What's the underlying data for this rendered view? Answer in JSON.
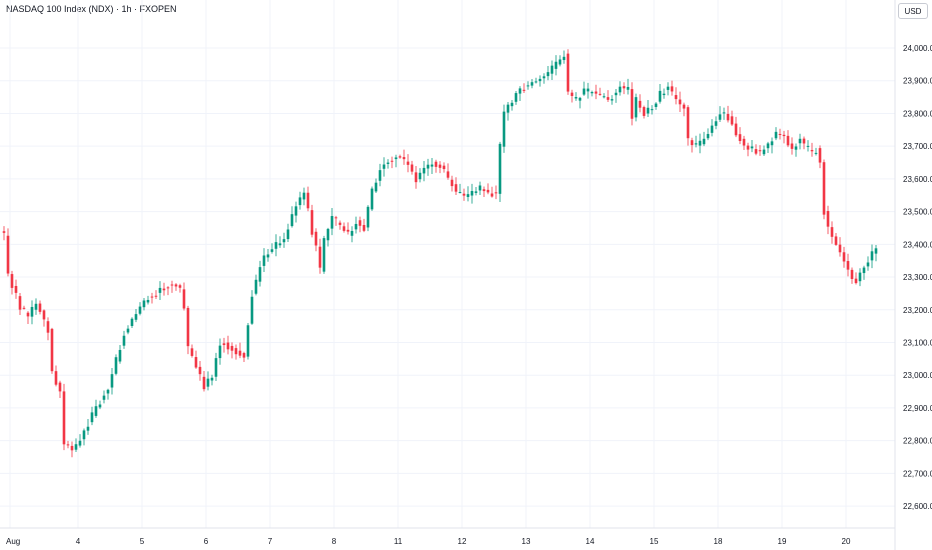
{
  "header": {
    "title": "NASDAQ 100 Index (NDX) · 1h · FXOPEN",
    "currency": "USD"
  },
  "colors": {
    "up": "#089981",
    "down": "#f23645",
    "grid": "#f0f3fa",
    "axis_text": "#131722",
    "background": "#ffffff"
  },
  "chart_data": {
    "type": "candlestick",
    "symbol": "NASDAQ 100 Index (NDX)",
    "interval": "1h",
    "source": "FXOPEN",
    "currency": "USD",
    "y_axis": {
      "side": "right",
      "ticks": [
        {
          "value": 24000,
          "label": "24,000.0"
        },
        {
          "value": 23900,
          "label": "23,900.0"
        },
        {
          "value": 23800,
          "label": "23,800.0"
        },
        {
          "value": 23700,
          "label": "23,700.0"
        },
        {
          "value": 23600,
          "label": "23,600.0"
        },
        {
          "value": 23500,
          "label": "23,500.0"
        },
        {
          "value": 23400,
          "label": "23,400.0"
        },
        {
          "value": 23300,
          "label": "23,300.0"
        },
        {
          "value": 23200,
          "label": "23,200.0"
        },
        {
          "value": 23100,
          "label": "23,100.0"
        },
        {
          "value": 23000,
          "label": "23,000.0"
        },
        {
          "value": 22900,
          "label": "22,900.0"
        },
        {
          "value": 22800,
          "label": "22,800.0"
        },
        {
          "value": 22700,
          "label": "22,700.0"
        },
        {
          "value": 22600,
          "label": "22,600.0"
        }
      ]
    },
    "x_axis": {
      "ticks": [
        {
          "label": "Aug",
          "idx": 1.5
        },
        {
          "label": "4",
          "idx": 18.5
        },
        {
          "label": "5",
          "idx": 34.5
        },
        {
          "label": "6",
          "idx": 50.5
        },
        {
          "label": "7",
          "idx": 66.5
        },
        {
          "label": "8",
          "idx": 82.5
        },
        {
          "label": "11",
          "idx": 98.5
        },
        {
          "label": "12",
          "idx": 114.5
        },
        {
          "label": "13",
          "idx": 130.5
        },
        {
          "label": "14",
          "idx": 146.5
        },
        {
          "label": "15",
          "idx": 162.5
        },
        {
          "label": "18",
          "idx": 178.5
        },
        {
          "label": "19",
          "idx": 194.5
        },
        {
          "label": "20",
          "idx": 210.5
        }
      ]
    },
    "grid": true,
    "close_path": [
      [
        0,
        23430
      ],
      [
        1,
        23310
      ],
      [
        4,
        23210
      ],
      [
        6,
        23180
      ],
      [
        8,
        23220
      ],
      [
        11,
        23140
      ],
      [
        12,
        23010
      ],
      [
        14,
        22950
      ],
      [
        15,
        22790
      ],
      [
        17,
        22770
      ],
      [
        19,
        22800
      ],
      [
        22,
        22880
      ],
      [
        26,
        22960
      ],
      [
        30,
        23130
      ],
      [
        33,
        23190
      ],
      [
        36,
        23240
      ],
      [
        39,
        23260
      ],
      [
        42,
        23280
      ],
      [
        44,
        23260
      ],
      [
        45,
        23210
      ],
      [
        46,
        23080
      ],
      [
        48,
        23030
      ],
      [
        50,
        22960
      ],
      [
        52,
        23000
      ],
      [
        54,
        23100
      ],
      [
        56,
        23090
      ],
      [
        58,
        23070
      ],
      [
        60,
        23060
      ],
      [
        62,
        23250
      ],
      [
        64,
        23330
      ],
      [
        66,
        23380
      ],
      [
        68,
        23400
      ],
      [
        70,
        23420
      ],
      [
        73,
        23520
      ],
      [
        75,
        23560
      ],
      [
        77,
        23440
      ],
      [
        78,
        23390
      ],
      [
        79,
        23320
      ],
      [
        80,
        23410
      ],
      [
        82,
        23480
      ],
      [
        84,
        23460
      ],
      [
        86,
        23430
      ],
      [
        88,
        23470
      ],
      [
        90,
        23450
      ],
      [
        92,
        23560
      ],
      [
        94,
        23630
      ],
      [
        96,
        23660
      ],
      [
        99,
        23670
      ],
      [
        101,
        23640
      ],
      [
        103,
        23600
      ],
      [
        105,
        23630
      ],
      [
        107,
        23650
      ],
      [
        109,
        23640
      ],
      [
        111,
        23600
      ],
      [
        113,
        23560
      ],
      [
        115,
        23540
      ],
      [
        117,
        23560
      ],
      [
        119,
        23570
      ],
      [
        121,
        23560
      ],
      [
        123,
        23550
      ],
      [
        124,
        23700
      ],
      [
        125,
        23800
      ],
      [
        128,
        23860
      ],
      [
        131,
        23890
      ],
      [
        135,
        23910
      ],
      [
        138,
        23950
      ],
      [
        140,
        23980
      ],
      [
        141,
        23860
      ],
      [
        143,
        23840
      ],
      [
        145,
        23870
      ],
      [
        148,
        23860
      ],
      [
        151,
        23840
      ],
      [
        154,
        23880
      ],
      [
        156,
        23870
      ],
      [
        157,
        23790
      ],
      [
        158,
        23840
      ],
      [
        160,
        23800
      ],
      [
        162,
        23820
      ],
      [
        164,
        23860
      ],
      [
        166,
        23880
      ],
      [
        168,
        23840
      ],
      [
        170,
        23820
      ],
      [
        171,
        23720
      ],
      [
        173,
        23700
      ],
      [
        175,
        23720
      ],
      [
        177,
        23760
      ],
      [
        179,
        23800
      ],
      [
        181,
        23790
      ],
      [
        183,
        23740
      ],
      [
        185,
        23700
      ],
      [
        187,
        23690
      ],
      [
        189,
        23680
      ],
      [
        191,
        23700
      ],
      [
        193,
        23740
      ],
      [
        195,
        23730
      ],
      [
        197,
        23690
      ],
      [
        199,
        23720
      ],
      [
        200,
        23700
      ],
      [
        202,
        23680
      ],
      [
        203,
        23690
      ],
      [
        204,
        23650
      ],
      [
        205,
        23500
      ],
      [
        206,
        23450
      ],
      [
        208,
        23400
      ],
      [
        210,
        23350
      ],
      [
        212,
        23300
      ],
      [
        213,
        23290
      ],
      [
        215,
        23330
      ],
      [
        217,
        23370
      ],
      [
        218,
        23380
      ]
    ]
  }
}
